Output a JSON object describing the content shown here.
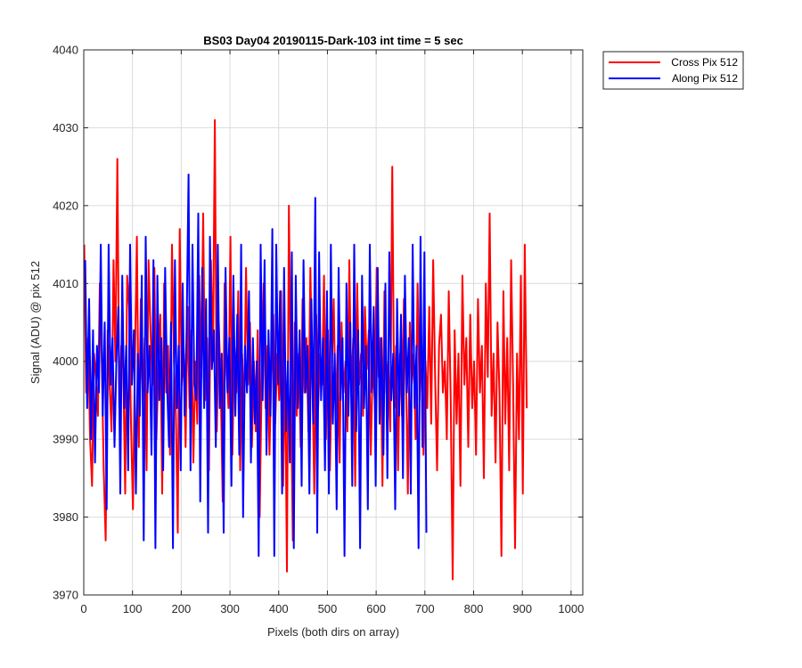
{
  "chart_data": {
    "type": "line",
    "title": "BS03 Day04 20190115-Dark-103 int time = 5 sec",
    "xlabel": "Pixels (both dirs on array)",
    "ylabel": "Signal (ADU) @ pix 512",
    "xlim": [
      0,
      1024
    ],
    "ylim": [
      3970,
      4040
    ],
    "xticks": [
      0,
      100,
      200,
      300,
      400,
      500,
      600,
      700,
      800,
      900,
      1000
    ],
    "yticks": [
      3970,
      3980,
      3990,
      4000,
      4010,
      4020,
      4030,
      4040
    ],
    "grid": true,
    "legend_position": "outside-top-right",
    "series": [
      {
        "name": "Cross Pix 512",
        "color": "#ff0000",
        "x_start": 1,
        "x_step": 4,
        "values": [
          4015,
          3996,
          4003,
          3990,
          3984,
          4001,
          3998,
          3993,
          4010,
          4000,
          3986,
          3977,
          4004,
          3997,
          3991,
          4013,
          4000,
          4026,
          3994,
          4002,
          3999,
          3983,
          4011,
          4007,
          3992,
          3981,
          4000,
          4016,
          3989,
          4008,
          3995,
          4003,
          3986,
          4013,
          4004,
          3997,
          4012,
          3990,
          3999,
          4006,
          3983,
          4010,
          3996,
          4002,
          3988,
          4015,
          4000,
          3993,
          3978,
          4017,
          3997,
          4001,
          3989,
          4007,
          3994,
          4004,
          3987,
          4000,
          3992,
          4011,
          3998,
          4019,
          3995,
          4003,
          3986,
          4013,
          4000,
          4031,
          3991,
          4005,
          3997,
          3982,
          4010,
          3999,
          3994,
          4016,
          3988,
          4002,
          3996,
          4009,
          3986,
          4001,
          3993,
          4012,
          3997,
          4005,
          3989,
          4000,
          3991,
          4004,
          3980,
          3997,
          4010,
          3994,
          4002,
          3988,
          3999,
          4006,
          3992,
          4001,
          3995,
          4009,
          3984,
          4000,
          3973,
          4020,
          3997,
          3977,
          4005,
          3993,
          4001,
          3989,
          4008,
          3996,
          4003,
          3991,
          4012,
          3998,
          3983,
          4006,
          3994,
          4001,
          3997,
          4011,
          3990,
          4004,
          3986,
          3999,
          4008,
          3993,
          4002,
          3987,
          4005,
          3996,
          4000,
          3991,
          4013,
          3996,
          4003,
          3984,
          4010,
          3997,
          4001,
          3993,
          4007,
          3999,
          4004,
          3988,
          4000,
          3995,
          4012,
          3998,
          4003,
          3984,
          4009,
          3996,
          4000,
          3991,
          4025,
          3994,
          4002,
          3986,
          4001,
          3993,
          4008,
          3999,
          3983,
          4005,
          3997,
          4001,
          3990,
          4010,
          3995,
          4003,
          3988,
          4000,
          3994,
          4007,
          3992,
          4013,
          3998,
          3986,
          4002,
          4006,
          3996,
          4000,
          3990,
          4009,
          3995,
          3972,
          4004,
          3992,
          4001,
          3984,
          4011,
          3997,
          4003,
          3989,
          4006,
          3994,
          4000,
          3988,
          4008,
          3996,
          4002,
          3985,
          4010,
          3998,
          4019,
          3993,
          4001,
          3987,
          4005,
          3996,
          3975,
          4009,
          3992,
          4003,
          3986,
          4013,
          3997,
          3976,
          4001,
          3990,
          4011,
          3983,
          4015,
          3994
        ]
      },
      {
        "name": "Along Pix 512",
        "color": "#0000ff",
        "x_start": 3,
        "x_step": 4,
        "values": [
          4013,
          3994,
          4008,
          3990,
          4004,
          3987,
          4002,
          3996,
          4015,
          3993,
          4005,
          3981,
          4015,
          3997,
          4003,
          3989,
          4000,
          4007,
          3983,
          4011,
          3994,
          4002,
          3986,
          4015,
          3997,
          4004,
          3983,
          4001,
          3993,
          4011,
          3977,
          4016,
          3996,
          4002,
          3988,
          4013,
          3976,
          4011,
          3995,
          4003,
          3986,
          4012,
          3997,
          3989,
          4005,
          3976,
          4013,
          3994,
          4002,
          3986,
          4010,
          3993,
          4004,
          4024,
          3986,
          4015,
          3997,
          3995,
          4019,
          3982,
          4012,
          3994,
          4008,
          3978,
          4016,
          3999,
          4004,
          3989,
          4015,
          3994,
          4001,
          3978,
          4012,
          3996,
          4003,
          3984,
          4011,
          3993,
          4006,
          3988,
          4015,
          3980,
          4002,
          3996,
          4009,
          3987,
          4003,
          3992,
          4000,
          3975,
          4015,
          3995,
          4013,
          3988,
          4004,
          3993,
          4017,
          3975,
          4015,
          3997,
          4009,
          3983,
          4012,
          3991,
          4000,
          3987,
          4014,
          3976,
          4011,
          3994,
          4004,
          3984,
          4013,
          3996,
          4002,
          3983,
          4008,
          3992,
          4021,
          3978,
          4014,
          3995,
          4003,
          3986,
          4009,
          3983,
          4015,
          3992,
          4001,
          3981,
          4012,
          3995,
          4003,
          3975,
          4010,
          3993,
          4005,
          3984,
          4015,
          3991,
          4004,
          3976,
          4011,
          3994,
          4002,
          3981,
          4015,
          3996,
          4007,
          3984,
          4012,
          3992,
          4003,
          3988,
          4010,
          3985,
          4014,
          3995,
          4001,
          3981,
          4008,
          3993,
          4006,
          3985,
          4011,
          3996,
          4003,
          3983,
          4015,
          3994,
          4002,
          3976,
          4016,
          3989,
          4014,
          3978
        ]
      }
    ]
  }
}
